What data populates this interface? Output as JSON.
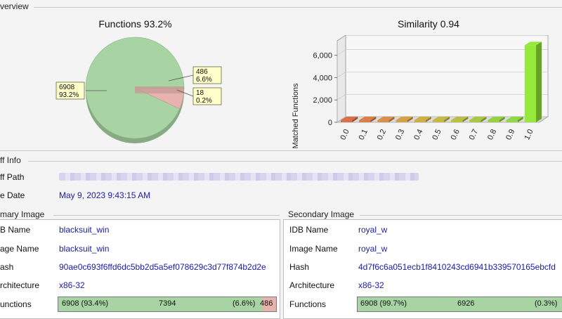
{
  "overview": {
    "group_label": "verview",
    "pie_title": "Functions 93.2%",
    "bar_title": "Similarity 0.94"
  },
  "chart_data": [
    {
      "type": "pie",
      "title": "Functions 93.2%",
      "slices": [
        {
          "label": "6908",
          "sub": "93.2%",
          "value": 6908,
          "color": "#a8d4a3"
        },
        {
          "label": "486",
          "sub": "6.6%",
          "value": 486,
          "color": "#e6b3ae"
        },
        {
          "label": "18",
          "sub": "0.2%",
          "value": 18,
          "color": "#c9c98a"
        }
      ]
    },
    {
      "type": "bar",
      "title": "Similarity 0.94",
      "xlabel": "",
      "ylabel": "Matched Functions",
      "categories": [
        "0.0",
        "0.1",
        "0.2",
        "0.3",
        "0.4",
        "0.5",
        "0.6",
        "0.7",
        "0.8",
        "0.9",
        "1.0"
      ],
      "values": [
        30,
        30,
        30,
        30,
        30,
        30,
        30,
        30,
        30,
        30,
        6900
      ],
      "yticks": [
        "0",
        "2,000",
        "4,000",
        "6,000"
      ],
      "ylim": [
        0,
        7300
      ],
      "bar_colors": [
        "#d9704a",
        "#d9804a",
        "#d9904a",
        "#d4a048",
        "#ccb046",
        "#c4b846",
        "#b8c046",
        "#a8c846",
        "#98d044",
        "#8ed842",
        "#96e83a"
      ]
    }
  ],
  "diff_info": {
    "group_label": "ff Info",
    "path_label": "ff Path",
    "date_label": "e Date",
    "date_value": "May 9, 2023 9:43:15 AM"
  },
  "primary": {
    "group_label": "mary Image",
    "idb_label": "B Name",
    "idb_value": "blacksuit_win",
    "image_label": "age Name",
    "image_value": "blacksuit_win",
    "hash_label": "ash",
    "hash_value": "90ae0c693f6ffd6dc5bb2d5a5ef078629c3d77f874b2d2e",
    "arch_label": "rchitecture",
    "arch_value": "x86-32",
    "func_label": "unctions",
    "func_matched": "6908 (93.4%)",
    "func_total": "7394",
    "func_unmatched_pct": "(6.6%)",
    "func_unmatched": "486",
    "matched_fraction": 0.934
  },
  "secondary": {
    "group_label": "Secondary Image",
    "idb_label": "IDB Name",
    "idb_value": "royal_w",
    "image_label": "Image Name",
    "image_value": "royal_w",
    "hash_label": "Hash",
    "hash_value": "4d7f6c6a051ecb1f8410243cd6941b339570165ebcfd",
    "arch_label": "Architecture",
    "arch_value": "x86-32",
    "func_label": "Functions",
    "func_matched": "6908 (99.7%)",
    "func_total": "6926",
    "func_unmatched_pct": "(0.3%)",
    "matched_fraction": 0.997
  }
}
